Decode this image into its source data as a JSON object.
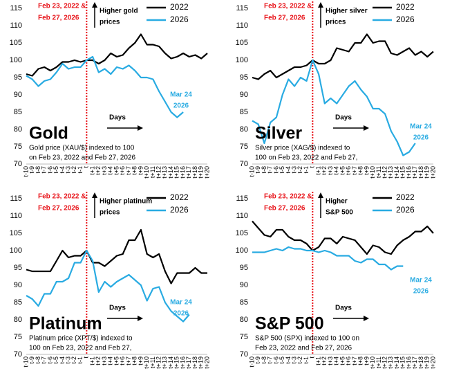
{
  "chart_data": [
    {
      "type": "line",
      "title": "Gold",
      "subtitle": [
        "Gold price (XAU/$) indexed to 100",
        "on Feb 23, 2022 and Feb 27, 2026"
      ],
      "date_annotation": [
        "Feb 23, 2022 &",
        "Feb 27, 2026"
      ],
      "arrow_annotation": [
        "Higher gold",
        "prices"
      ],
      "days_annotation": "Days",
      "end_annotation": [
        "Mar 24",
        "2026"
      ],
      "categories": [
        "t-10",
        "t-9",
        "t-8",
        "t-7",
        "t-6",
        "t-5",
        "t-4",
        "t-3",
        "t-2",
        "t-1",
        "t",
        "t+1",
        "t+2",
        "t+3",
        "t+4",
        "t+5",
        "t+6",
        "t+7",
        "t+8",
        "t+9",
        "t+10",
        "t+11",
        "t+12",
        "t+13",
        "t+14",
        "t+15",
        "t+16",
        "t+17",
        "t+18",
        "t+19",
        "t+20"
      ],
      "ylim": [
        70,
        115
      ],
      "yticks": [
        70,
        75,
        80,
        85,
        90,
        95,
        100,
        105,
        110,
        115
      ],
      "grid": false,
      "legend": "top-right",
      "series": [
        {
          "name": "2022",
          "color": "#000000",
          "values": [
            96,
            95.5,
            97.5,
            98,
            97,
            98,
            99.5,
            99.5,
            100,
            99.5,
            100,
            100,
            99,
            100,
            102,
            101,
            101.5,
            103.5,
            105,
            107.5,
            104.5,
            104.5,
            104,
            102,
            100.5,
            101,
            102,
            101,
            101.5,
            100.5,
            102
          ]
        },
        {
          "name": "2026",
          "color": "#29abe2",
          "values": [
            95.5,
            94.5,
            92.5,
            94,
            94.5,
            96.5,
            99,
            97.5,
            98,
            98,
            100,
            101,
            96.5,
            97.5,
            96,
            98,
            97.5,
            98.5,
            97,
            95,
            95,
            94.5,
            91,
            88,
            85,
            83.5,
            85,
            null,
            null,
            null,
            null
          ]
        }
      ]
    },
    {
      "type": "line",
      "title": "Silver",
      "subtitle": [
        "Silver price (XAG/$) indexed to",
        "100 on Feb 23, 2022 and Feb 27,"
      ],
      "date_annotation": [
        "Feb 23, 2022 &",
        "Feb 27, 2026"
      ],
      "arrow_annotation": [
        "Higher silver",
        "prices"
      ],
      "days_annotation": "Days",
      "end_annotation": [
        "Mar 24",
        "2026"
      ],
      "categories": [
        "t-10",
        "t-9",
        "t-8",
        "t-7",
        "t-6",
        "t-5",
        "t-4",
        "t-3",
        "t-2",
        "t-1",
        "t",
        "t+1",
        "t+2",
        "t+3",
        "t+4",
        "t+5",
        "t+6",
        "t+7",
        "t+8",
        "t+9",
        "t+10",
        "t+11",
        "t+12",
        "t+13",
        "t+14",
        "t+15",
        "t+16",
        "t+17",
        "t+18",
        "t+19",
        "t+20"
      ],
      "ylim": [
        70,
        115
      ],
      "yticks": [
        70,
        75,
        80,
        85,
        90,
        95,
        100,
        105,
        110,
        115
      ],
      "grid": false,
      "legend": "top-right",
      "series": [
        {
          "name": "2022",
          "color": "#000000",
          "values": [
            95,
            94.5,
            96,
            97,
            95,
            96,
            97,
            98,
            98,
            98.5,
            100,
            99,
            99,
            100,
            103.5,
            103,
            102.5,
            105,
            105,
            107.5,
            105,
            105.5,
            105.5,
            102,
            101.5,
            102.5,
            103.5,
            101.5,
            102.5,
            101,
            102.5
          ]
        },
        {
          "name": "2026",
          "color": "#29abe2",
          "values": [
            82.5,
            81.5,
            76,
            82,
            83.5,
            90,
            94.5,
            92.5,
            95,
            94,
            100,
            96,
            87.5,
            89,
            87.5,
            90,
            92.5,
            94,
            91.5,
            89.5,
            86,
            86,
            84.5,
            79.5,
            76.5,
            72.5,
            73.5,
            76,
            null,
            null,
            null
          ]
        }
      ]
    },
    {
      "type": "line",
      "title": "Platinum",
      "subtitle": [
        "Platinum price (XPT/$) indexed to",
        "100 on Feb 23, 2022 and Feb 27,"
      ],
      "date_annotation": [
        "Feb 23, 2022 &",
        "Feb 27, 2026"
      ],
      "arrow_annotation": [
        "Higher platinum",
        "prices"
      ],
      "days_annotation": "Days",
      "end_annotation": [
        "Mar 24",
        "2026"
      ],
      "categories": [
        "t-10",
        "t-9",
        "t-8",
        "t-7",
        "t-6",
        "t-5",
        "t-4",
        "t-3",
        "t-2",
        "t-1",
        "t",
        "t+1",
        "t+2",
        "t+3",
        "t+4",
        "t+5",
        "t+6",
        "t+7",
        "t+8",
        "t+9",
        "t+10",
        "t+11",
        "t+12",
        "t+13",
        "t+14",
        "t+15",
        "t+16",
        "t+17",
        "t+18",
        "t+19",
        "t+20"
      ],
      "ylim": [
        70,
        115
      ],
      "yticks": [
        70,
        75,
        80,
        85,
        90,
        95,
        100,
        105,
        110,
        115
      ],
      "grid": false,
      "legend": "top-right",
      "series": [
        {
          "name": "2022",
          "color": "#000000",
          "values": [
            94.5,
            94,
            94,
            94,
            94,
            97,
            100,
            98,
            98.5,
            98.5,
            100,
            96.5,
            96.5,
            95.5,
            97,
            98.5,
            99,
            103,
            103,
            106,
            99,
            98,
            99,
            94,
            90.5,
            93.5,
            93.5,
            93.5,
            95,
            93.5,
            93.5
          ]
        },
        {
          "name": "2026",
          "color": "#29abe2",
          "values": [
            87,
            86,
            84,
            87.5,
            87.5,
            91,
            91,
            92,
            96.5,
            96.5,
            100,
            97,
            88,
            91,
            89.5,
            91,
            92,
            93,
            91.5,
            90,
            85.5,
            89,
            89.5,
            85,
            82.5,
            81,
            79.5,
            81.5,
            null,
            null,
            null
          ]
        }
      ]
    },
    {
      "type": "line",
      "title": "S&P 500",
      "subtitle": [
        "S&P 500 (SPX) indexed to 100 on",
        "Feb 23, 2022 and Feb 27, 2026"
      ],
      "date_annotation": [
        "Feb 23, 2022 &",
        "Feb 27, 2026"
      ],
      "arrow_annotation": [
        "Higher",
        "S&P 500"
      ],
      "days_annotation": "Days",
      "end_annotation": [
        "Mar 24",
        "2026"
      ],
      "categories": [
        "t-10",
        "t-9",
        "t-8",
        "t-7",
        "t-6",
        "t-5",
        "t-4",
        "t-3",
        "t-2",
        "t-1",
        "t",
        "t+1",
        "t+2",
        "t+3",
        "t+4",
        "t+5",
        "t+6",
        "t+7",
        "t+8",
        "t+9",
        "t+10",
        "t+11",
        "t+12",
        "t+13",
        "t+14",
        "t+15",
        "t+16",
        "t+17",
        "t+18",
        "t+19",
        "t+20"
      ],
      "ylim": [
        70,
        115
      ],
      "yticks": [
        70,
        75,
        80,
        85,
        90,
        95,
        100,
        105,
        110,
        115
      ],
      "grid": false,
      "legend": "top-right",
      "series": [
        {
          "name": "2022",
          "color": "#000000",
          "values": [
            108.5,
            106.5,
            104.5,
            104,
            106,
            106,
            104,
            103,
            103,
            102,
            100,
            101,
            103.5,
            103.5,
            102,
            104,
            103.5,
            103,
            101,
            99,
            101.5,
            101,
            99.5,
            99,
            101.5,
            103,
            104,
            105.5,
            105.5,
            107,
            105
          ]
        },
        {
          "name": "2026",
          "color": "#29abe2",
          "values": [
            99.5,
            99.5,
            99.5,
            100,
            100.5,
            100,
            101,
            100.5,
            100.5,
            100,
            100,
            99.5,
            100,
            99.5,
            98.5,
            98.5,
            98.5,
            97,
            96.5,
            97.5,
            97.5,
            96,
            96,
            94.5,
            95.5,
            95.5,
            null,
            null,
            null,
            null,
            null
          ]
        }
      ]
    }
  ]
}
